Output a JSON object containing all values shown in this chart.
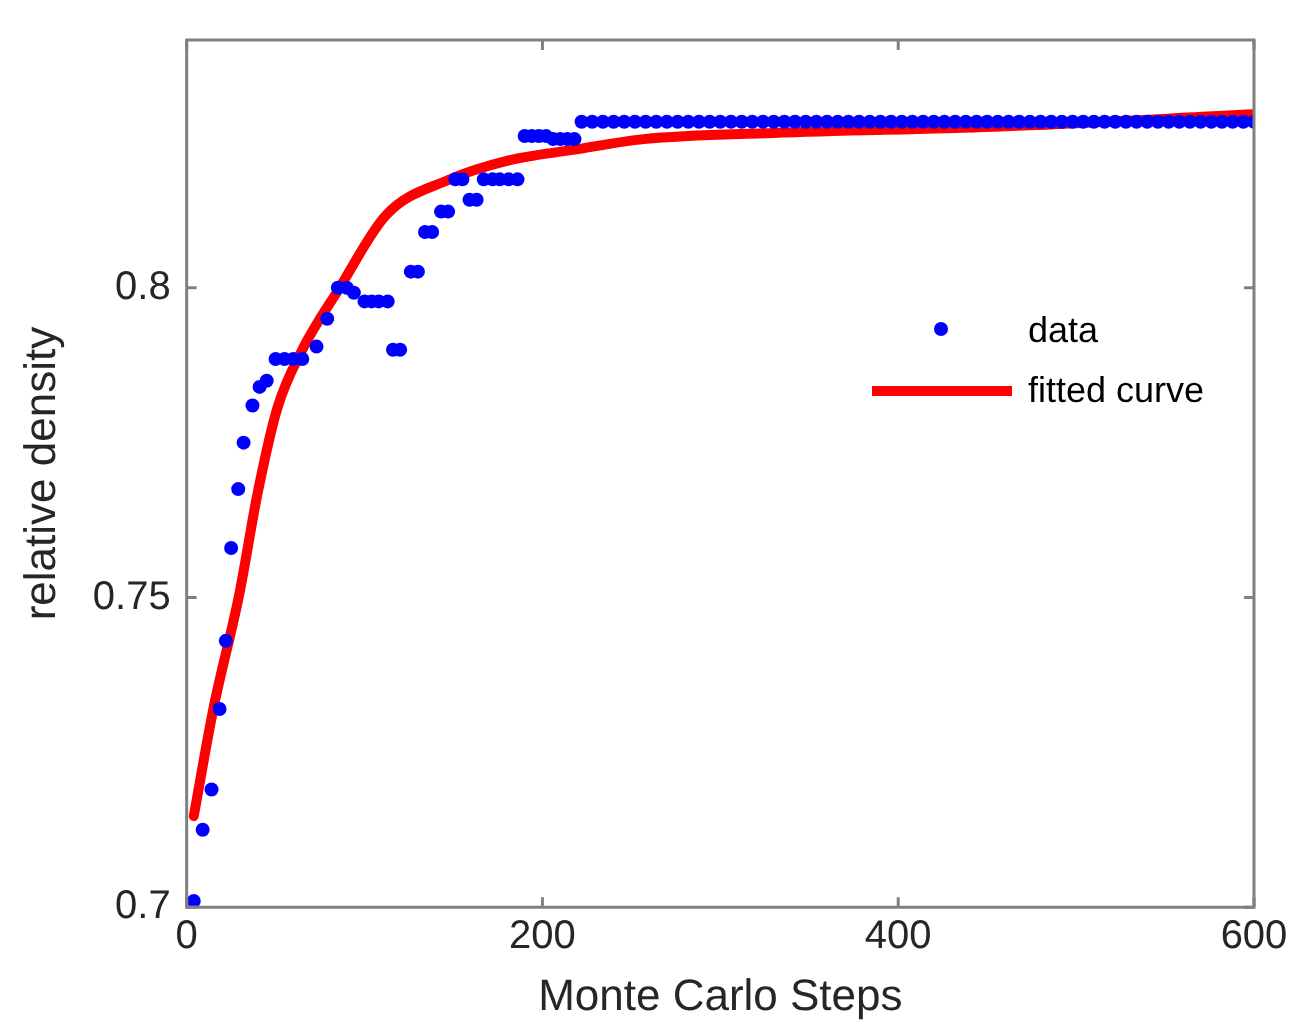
{
  "chart_data": {
    "type": "scatter",
    "xlabel": "Monte Carlo Steps",
    "ylabel": "relative density",
    "xlim": [
      0,
      600
    ],
    "ylim": [
      0.7,
      0.84
    ],
    "xticks": [
      0,
      200,
      400,
      600
    ],
    "yticks": [
      0.7,
      0.75,
      0.8
    ],
    "grid": false,
    "legend": "right",
    "series": [
      {
        "name": "data",
        "type": "scatter",
        "marker": "circle",
        "color": "#0000ff",
        "x": [
          4,
          9,
          14,
          18.5,
          22,
          25,
          29,
          32,
          37,
          41,
          45,
          50,
          55,
          60,
          65,
          73,
          79,
          85,
          90,
          94,
          100,
          104,
          108,
          113,
          116,
          120,
          126,
          130,
          134,
          138,
          143,
          147,
          151,
          155,
          159,
          163,
          167,
          172,
          176,
          181,
          186,
          190,
          194,
          198,
          202,
          206,
          210,
          214,
          218,
          222,
          228,
          234,
          240,
          246,
          252,
          258,
          264,
          270,
          276,
          282,
          288,
          294,
          300,
          306,
          312,
          318,
          324,
          330,
          336,
          342,
          348,
          354,
          360,
          366,
          372,
          378,
          384,
          390,
          396,
          402,
          408,
          414,
          420,
          426,
          432,
          438,
          444,
          450,
          456,
          462,
          468,
          474,
          480,
          486,
          492,
          498,
          504,
          510,
          516,
          522,
          528,
          534,
          540,
          546,
          552,
          558,
          564,
          570,
          576,
          582,
          588,
          594,
          600
        ],
        "values": [
          0.701,
          0.7125,
          0.719,
          0.732,
          0.743,
          0.758,
          0.7675,
          0.775,
          0.781,
          0.784,
          0.785,
          0.7885,
          0.7885,
          0.7885,
          0.7885,
          0.7905,
          0.795,
          0.8,
          0.8,
          0.7992,
          0.7978,
          0.7978,
          0.7978,
          0.7978,
          0.79,
          0.79,
          0.8026,
          0.8026,
          0.809,
          0.809,
          0.8123,
          0.8123,
          0.8175,
          0.8175,
          0.8142,
          0.8142,
          0.8175,
          0.8175,
          0.8175,
          0.8175,
          0.8175,
          0.8245,
          0.8245,
          0.8245,
          0.8245,
          0.824,
          0.824,
          0.824,
          0.824,
          0.8268,
          0.8268,
          0.8268,
          0.8268,
          0.8268,
          0.8268,
          0.8268,
          0.8268,
          0.8268,
          0.8268,
          0.8268,
          0.8268,
          0.8268,
          0.8268,
          0.8268,
          0.8268,
          0.8268,
          0.8268,
          0.8268,
          0.8268,
          0.8268,
          0.8268,
          0.8268,
          0.8268,
          0.8268,
          0.8268,
          0.8268,
          0.8268,
          0.8268,
          0.8268,
          0.8268,
          0.8268,
          0.8268,
          0.8268,
          0.8268,
          0.8268,
          0.8268,
          0.8268,
          0.8268,
          0.8268,
          0.8268,
          0.8268,
          0.8268,
          0.8268,
          0.8268,
          0.8268,
          0.8268,
          0.8268,
          0.8268,
          0.8268,
          0.8268,
          0.8268,
          0.8268,
          0.8268,
          0.8268,
          0.8268,
          0.8268,
          0.8268,
          0.8268,
          0.8268,
          0.8268,
          0.8268,
          0.8268,
          0.8268
        ]
      },
      {
        "name": "fitted curve",
        "type": "line",
        "marker": "none",
        "line_style": "solid",
        "color": "#ff0000",
        "x": [
          4,
          15,
          29.5,
          40,
          51,
          65,
          86,
          112,
          147,
          180,
          218,
          257,
          330,
          454,
          600
        ],
        "values": [
          0.7147,
          0.732,
          0.7504,
          0.767,
          0.7806,
          0.79,
          0.8,
          0.8117,
          0.8174,
          0.8205,
          0.8223,
          0.824,
          0.825,
          0.826,
          0.828
        ]
      }
    ]
  }
}
